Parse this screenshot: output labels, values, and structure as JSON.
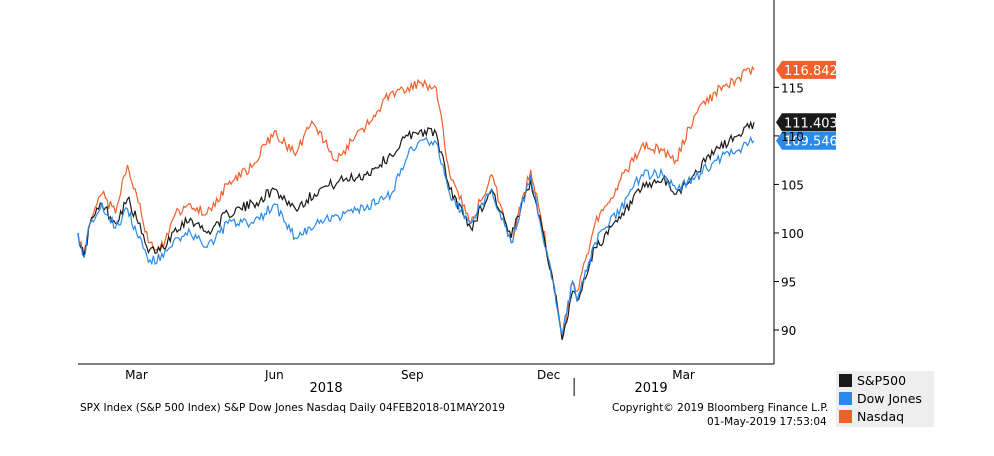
{
  "chart_data": {
    "type": "line",
    "y_axis": {
      "ylim": [
        86.5,
        124
      ],
      "ticks": [
        90,
        95,
        100,
        105,
        110,
        115
      ],
      "tick_labels": [
        "90",
        "95",
        "100",
        "105",
        "110",
        "115"
      ],
      "side": "right"
    },
    "x_axis": {
      "range": [
        "2018-02-04",
        "2019-05-01"
      ],
      "ticks": [
        {
          "label": "Mar",
          "date": "2018-03-15"
        },
        {
          "label": "Jun",
          "date": "2018-06-15"
        },
        {
          "label": "Sep",
          "date": "2018-09-15"
        },
        {
          "label": "Dec",
          "date": "2018-12-15"
        },
        {
          "label": "Mar",
          "date": "2019-03-15"
        }
      ],
      "years": [
        "2018",
        "2019"
      ]
    },
    "grid": false,
    "legend_position": "bottom-right",
    "series": [
      {
        "name": "S&P500",
        "color": "#1a1a1a",
        "last_label": "111.403",
        "points": [
          [
            "2018-02-04",
            100
          ],
          [
            "2018-02-08",
            97.5
          ],
          [
            "2018-02-12",
            101
          ],
          [
            "2018-02-20",
            103
          ],
          [
            "2018-03-01",
            101
          ],
          [
            "2018-03-09",
            103.5
          ],
          [
            "2018-03-15",
            101.5
          ],
          [
            "2018-03-23",
            98
          ],
          [
            "2018-04-02",
            98.5
          ],
          [
            "2018-04-10",
            100.5
          ],
          [
            "2018-04-20",
            101.5
          ],
          [
            "2018-05-01",
            100
          ],
          [
            "2018-05-15",
            102
          ],
          [
            "2018-06-01",
            103
          ],
          [
            "2018-06-15",
            104.5
          ],
          [
            "2018-06-29",
            102.5
          ],
          [
            "2018-07-15",
            104.5
          ],
          [
            "2018-08-01",
            105.5
          ],
          [
            "2018-08-15",
            106
          ],
          [
            "2018-09-01",
            108
          ],
          [
            "2018-09-12",
            110
          ],
          [
            "2018-09-20",
            110.5
          ],
          [
            "2018-10-01",
            110.3
          ],
          [
            "2018-10-10",
            104.5
          ],
          [
            "2018-10-24",
            100.5
          ],
          [
            "2018-11-07",
            104.5
          ],
          [
            "2018-11-20",
            99.5
          ],
          [
            "2018-12-03",
            105.5
          ],
          [
            "2018-12-10",
            101
          ],
          [
            "2018-12-18",
            95
          ],
          [
            "2018-12-24",
            89
          ],
          [
            "2018-12-31",
            94
          ],
          [
            "2019-01-03",
            93
          ],
          [
            "2019-01-15",
            98.5
          ],
          [
            "2019-02-01",
            101.5
          ],
          [
            "2019-02-15",
            104.5
          ],
          [
            "2019-03-01",
            105.5
          ],
          [
            "2019-03-10",
            104
          ],
          [
            "2019-03-22",
            106
          ],
          [
            "2019-04-05",
            108.5
          ],
          [
            "2019-04-20",
            110
          ],
          [
            "2019-05-01",
            111.4
          ]
        ]
      },
      {
        "name": "Dow Jones",
        "color": "#2a8aea",
        "last_label": "109.546",
        "points": [
          [
            "2018-02-04",
            100
          ],
          [
            "2018-02-08",
            97.5
          ],
          [
            "2018-02-12",
            101
          ],
          [
            "2018-02-20",
            103
          ],
          [
            "2018-03-01",
            100.5
          ],
          [
            "2018-03-09",
            102.5
          ],
          [
            "2018-03-15",
            100
          ],
          [
            "2018-03-23",
            97
          ],
          [
            "2018-04-02",
            97.5
          ],
          [
            "2018-04-10",
            99.5
          ],
          [
            "2018-04-20",
            100
          ],
          [
            "2018-05-01",
            98.5
          ],
          [
            "2018-05-15",
            101
          ],
          [
            "2018-06-01",
            101
          ],
          [
            "2018-06-15",
            103
          ],
          [
            "2018-06-29",
            99.5
          ],
          [
            "2018-07-15",
            101
          ],
          [
            "2018-08-01",
            102
          ],
          [
            "2018-08-15",
            102.5
          ],
          [
            "2018-09-01",
            104
          ],
          [
            "2018-09-12",
            108
          ],
          [
            "2018-09-20",
            109.5
          ],
          [
            "2018-10-01",
            109.3
          ],
          [
            "2018-10-10",
            104
          ],
          [
            "2018-10-24",
            101
          ],
          [
            "2018-11-07",
            104.5
          ],
          [
            "2018-11-20",
            99
          ],
          [
            "2018-12-03",
            106
          ],
          [
            "2018-12-10",
            100.5
          ],
          [
            "2018-12-18",
            95
          ],
          [
            "2018-12-24",
            89.5
          ],
          [
            "2018-12-31",
            95
          ],
          [
            "2019-01-03",
            93
          ],
          [
            "2019-01-15",
            99
          ],
          [
            "2019-02-01",
            102.5
          ],
          [
            "2019-02-15",
            106
          ],
          [
            "2019-03-01",
            106
          ],
          [
            "2019-03-10",
            104.5
          ],
          [
            "2019-03-22",
            105.5
          ],
          [
            "2019-04-05",
            107.5
          ],
          [
            "2019-04-20",
            108.5
          ],
          [
            "2019-05-01",
            109.5
          ]
        ]
      },
      {
        "name": "Nasdaq",
        "color": "#f0602c",
        "last_label": "116.842",
        "points": [
          [
            "2018-02-04",
            100
          ],
          [
            "2018-02-08",
            97.5
          ],
          [
            "2018-02-12",
            101
          ],
          [
            "2018-02-20",
            104
          ],
          [
            "2018-03-01",
            102
          ],
          [
            "2018-03-09",
            107
          ],
          [
            "2018-03-15",
            104
          ],
          [
            "2018-03-23",
            99
          ],
          [
            "2018-04-02",
            98.5
          ],
          [
            "2018-04-10",
            102
          ],
          [
            "2018-04-20",
            103
          ],
          [
            "2018-05-01",
            102
          ],
          [
            "2018-05-15",
            105
          ],
          [
            "2018-06-01",
            107
          ],
          [
            "2018-06-15",
            110.5
          ],
          [
            "2018-06-29",
            108
          ],
          [
            "2018-07-10",
            111.5
          ],
          [
            "2018-07-26",
            107.5
          ],
          [
            "2018-08-15",
            111
          ],
          [
            "2018-09-01",
            114.5
          ],
          [
            "2018-09-12",
            115
          ],
          [
            "2018-09-20",
            115.5
          ],
          [
            "2018-10-01",
            115
          ],
          [
            "2018-10-10",
            106
          ],
          [
            "2018-10-24",
            101
          ],
          [
            "2018-11-07",
            106
          ],
          [
            "2018-11-20",
            99
          ],
          [
            "2018-12-03",
            106.5
          ],
          [
            "2018-12-10",
            101.5
          ],
          [
            "2018-12-18",
            95
          ],
          [
            "2018-12-24",
            89
          ],
          [
            "2018-12-31",
            95
          ],
          [
            "2019-01-03",
            94
          ],
          [
            "2019-01-15",
            101
          ],
          [
            "2019-02-01",
            105.5
          ],
          [
            "2019-02-15",
            109
          ],
          [
            "2019-03-01",
            108.5
          ],
          [
            "2019-03-10",
            107.5
          ],
          [
            "2019-03-22",
            112
          ],
          [
            "2019-04-05",
            114.5
          ],
          [
            "2019-04-20",
            116
          ],
          [
            "2019-05-01",
            116.8
          ]
        ]
      }
    ]
  },
  "footer": {
    "source": "SPX Index (S&P 500 Index) S&P Dow Jones Nasdaq  Daily 04FEB2018-01MAY2019",
    "copyright": "Copyright© 2019 Bloomberg Finance L.P.",
    "timestamp": "01-May-2019 17:53:04"
  }
}
